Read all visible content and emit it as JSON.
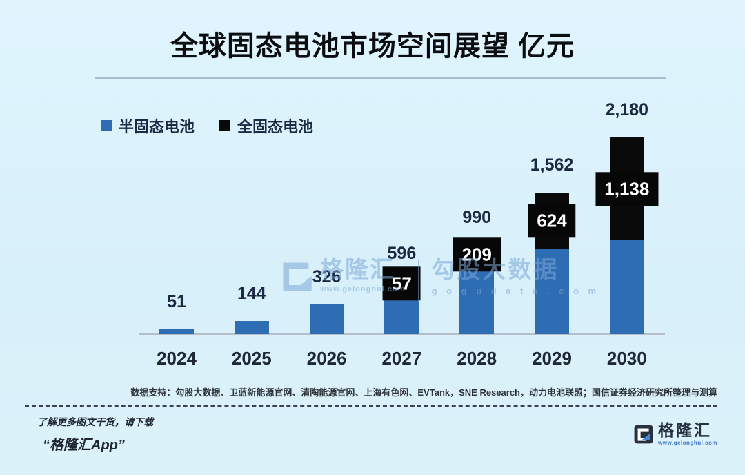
{
  "title": "全球固态电池市场空间展望 亿元",
  "legend": {
    "items": [
      {
        "label": "半固态电池",
        "color": "#2e6cb4"
      },
      {
        "label": "全固态电池",
        "color": "#0a0a0a"
      }
    ]
  },
  "chart_data": {
    "type": "bar",
    "stacked": true,
    "title": "全球固态电池市场空间展望",
    "unit": "亿元",
    "categories": [
      "2024",
      "2025",
      "2026",
      "2027",
      "2028",
      "2029",
      "2030"
    ],
    "series": [
      {
        "name": "半固态电池",
        "color": "#2e6cb4",
        "values": [
          51,
          144,
          326,
          539,
          781,
          938,
          1042
        ]
      },
      {
        "name": "全固态电池",
        "color": "#0a0a0a",
        "values": [
          0,
          0,
          0,
          57,
          209,
          624,
          1138
        ]
      }
    ],
    "totals": [
      51,
      144,
      326,
      596,
      990,
      1562,
      2180
    ],
    "total_labels": [
      "51",
      "144",
      "326",
      "596",
      "990",
      "1,562",
      "2,180"
    ],
    "all_solid_labels": [
      "",
      "",
      "",
      "57",
      "209",
      "624",
      "1,138"
    ],
    "ylim": [
      0,
      2300
    ],
    "grid": false,
    "y_axis_visible": false,
    "legend_position": "top-left"
  },
  "watermark": {
    "brand": "格隆汇",
    "brand_url": "www.gelonghui.com",
    "data_brand": "勾股大数据",
    "data_url": "g o g u d a t a . c o m"
  },
  "source_note": "数据支持：勾股大数据、卫蓝新能源官网、清陶能源官网、上海有色网、EVTank，SNE Research，动力电池联盟；国信证券经济研究所整理与测算",
  "bottom": {
    "promo_line": "了解更多图文干货，请下载",
    "promo_app": "“格隆汇App”",
    "logo_text": "格隆汇",
    "logo_url": "www.gelonghui.com"
  },
  "colors": {
    "background": "#d9f0fb",
    "bar_blue": "#2e6cb4",
    "bar_black": "#0a0a0a",
    "axis_line": "#b6bdc6",
    "label_dark": "#1b2942",
    "watermark_blue": "#7ea9d8",
    "logo_navy": "#27303f",
    "logo_blue": "#4b86d6"
  }
}
